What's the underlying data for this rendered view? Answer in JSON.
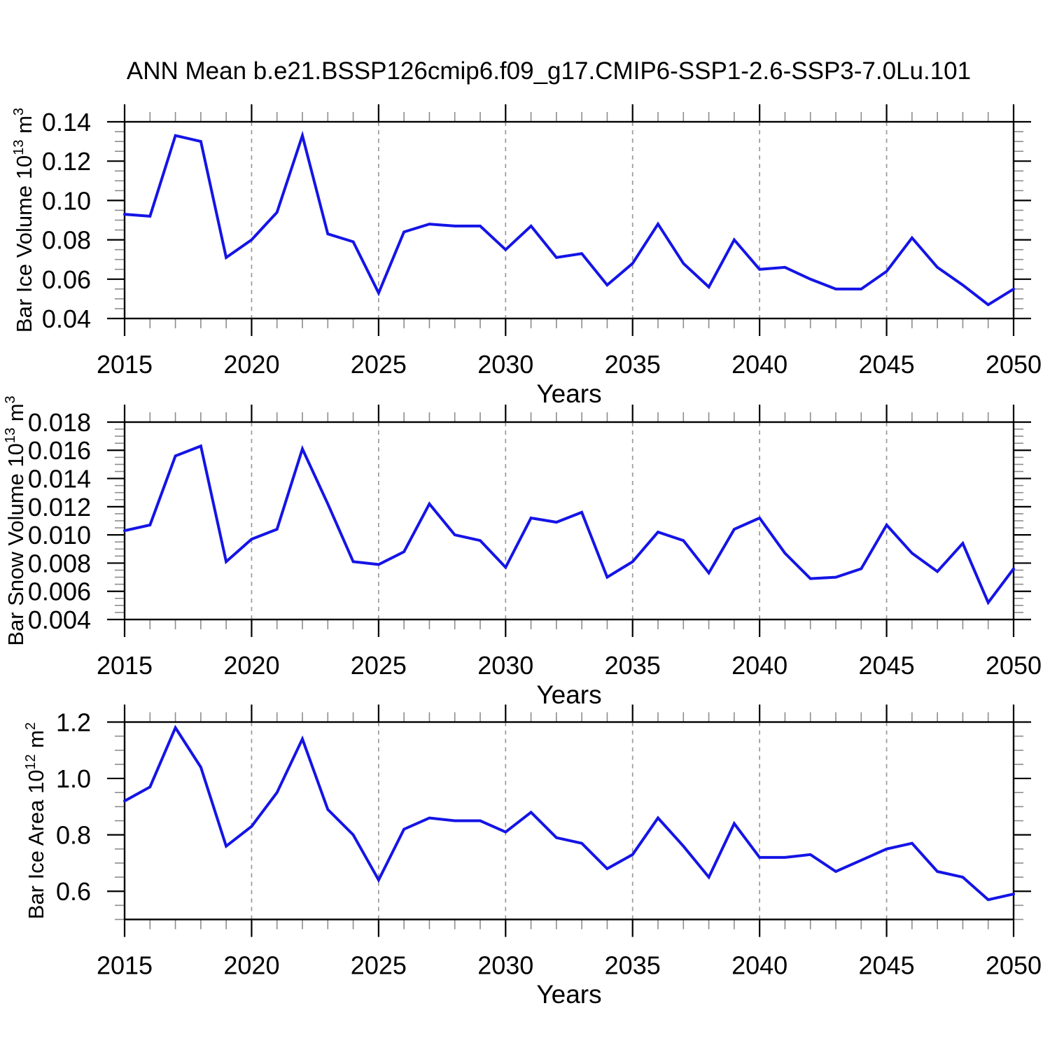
{
  "title": "ANN Mean b.e21.BSSP126cmip6.f09_g17.CMIP6-SSP1-2.6-SSP3-7.0Lu.101",
  "xlabel": "Years",
  "colors": {
    "line": "#1414e6",
    "grid": "#9a9a9a",
    "minor_tick": "#8c8c8c",
    "axis": "#000000",
    "background": "#ffffff"
  },
  "x_axis": {
    "min": 2015,
    "max": 2050,
    "major_tick_step": 5,
    "minor_tick_step": 1,
    "major_tick_labels": [
      "2015",
      "2020",
      "2025",
      "2030",
      "2035",
      "2040",
      "2045",
      "2050"
    ],
    "grid_years": [
      2020,
      2025,
      2030,
      2035,
      2040,
      2045
    ]
  },
  "years": [
    2015,
    2016,
    2017,
    2018,
    2019,
    2020,
    2021,
    2022,
    2023,
    2024,
    2025,
    2026,
    2027,
    2028,
    2029,
    2030,
    2031,
    2032,
    2033,
    2034,
    2035,
    2036,
    2037,
    2038,
    2039,
    2040,
    2041,
    2042,
    2043,
    2044,
    2045,
    2046,
    2047,
    2048,
    2049,
    2050
  ],
  "chart_data": [
    {
      "type": "line",
      "name": "ice-volume",
      "ylabel_text": "Bar Ice Volume 10^13 m^3",
      "ylabel": {
        "prefix": "Bar Ice Volume 10",
        "sup": "13",
        "mid": " m",
        "sup2": "3"
      },
      "xlabel": "Years",
      "ylim": [
        0.04,
        0.14
      ],
      "ytick_major": [
        0.14,
        0.12,
        0.1,
        0.08,
        0.06,
        0.04
      ],
      "ytick_labels": [
        "0.14",
        "0.12",
        "0.10",
        "0.08",
        "0.06",
        "0.04"
      ],
      "ytick_minor_step": 0.005,
      "grid": "vertical-dashed",
      "values": [
        0.093,
        0.092,
        0.133,
        0.13,
        0.071,
        0.08,
        0.094,
        0.133,
        0.083,
        0.079,
        0.053,
        0.084,
        0.088,
        0.087,
        0.087,
        0.075,
        0.087,
        0.071,
        0.073,
        0.057,
        0.068,
        0.088,
        0.068,
        0.056,
        0.08,
        0.065,
        0.066,
        0.06,
        0.055,
        0.055,
        0.064,
        0.081,
        0.066,
        0.057,
        0.047,
        0.055
      ]
    },
    {
      "type": "line",
      "name": "snow-volume",
      "ylabel_text": "Bar Snow Volume 10^13 m^3",
      "ylabel": {
        "prefix": "Bar Snow Volume 10",
        "sup": "13",
        "mid": " m",
        "sup2": "3"
      },
      "xlabel": "Years",
      "ylim": [
        0.004,
        0.018
      ],
      "ytick_major": [
        0.018,
        0.016,
        0.014,
        0.012,
        0.01,
        0.008,
        0.006,
        0.004
      ],
      "ytick_labels": [
        "0.018",
        "0.016",
        "0.014",
        "0.012",
        "0.010",
        "0.008",
        "0.006",
        "0.004"
      ],
      "ytick_minor_step": 0.0005,
      "grid": "vertical-dashed",
      "values": [
        0.0103,
        0.0107,
        0.0156,
        0.0163,
        0.0081,
        0.0097,
        0.0104,
        0.0161,
        0.0122,
        0.0081,
        0.0079,
        0.0088,
        0.0122,
        0.01,
        0.0096,
        0.0077,
        0.0112,
        0.0109,
        0.0116,
        0.007,
        0.0081,
        0.0102,
        0.0096,
        0.0073,
        0.0104,
        0.0112,
        0.0087,
        0.0069,
        0.007,
        0.0076,
        0.0107,
        0.0087,
        0.0074,
        0.0094,
        0.0052,
        0.0076
      ]
    },
    {
      "type": "line",
      "name": "ice-area",
      "ylabel_text": "Bar Ice Area 10^12 m^2",
      "ylabel": {
        "prefix": "Bar Ice Area 10",
        "sup": "12",
        "mid": " m",
        "sup2": "2"
      },
      "xlabel": "Years",
      "ylim": [
        0.5,
        1.2
      ],
      "ytick_major": [
        1.2,
        1.0,
        0.8,
        0.6
      ],
      "ytick_labels": [
        "1.2",
        "1.0",
        "0.8",
        "0.6"
      ],
      "ytick_minor_step": 0.05,
      "grid": "vertical-dashed",
      "values": [
        0.92,
        0.97,
        1.18,
        1.04,
        0.76,
        0.83,
        0.95,
        1.14,
        0.89,
        0.8,
        0.64,
        0.82,
        0.86,
        0.85,
        0.85,
        0.81,
        0.88,
        0.79,
        0.77,
        0.68,
        0.73,
        0.86,
        0.76,
        0.65,
        0.84,
        0.72,
        0.72,
        0.73,
        0.67,
        0.71,
        0.75,
        0.77,
        0.67,
        0.65,
        0.57,
        0.59
      ]
    }
  ]
}
